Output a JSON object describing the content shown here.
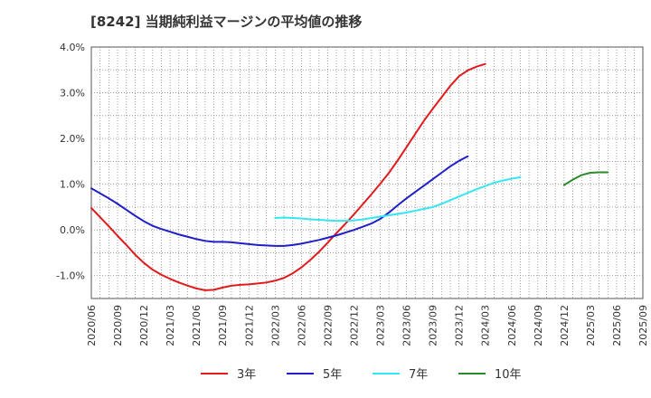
{
  "chart_data": {
    "type": "line",
    "title": "[8242]  当期純利益マージンの平均値の推移",
    "xlabel": "",
    "ylabel": "",
    "ylim": [
      -1.5,
      4.0
    ],
    "yticks": [
      4.0,
      3.0,
      2.0,
      1.0,
      0.0,
      -1.0
    ],
    "ytick_labels": [
      "4.0%",
      "3.0%",
      "2.0%",
      "1.0%",
      "0.0%",
      "-1.0%"
    ],
    "xticks": [
      "2020/06",
      "2020/09",
      "2020/12",
      "2021/03",
      "2021/06",
      "2021/09",
      "2021/12",
      "2022/03",
      "2022/06",
      "2022/09",
      "2022/12",
      "2023/03",
      "2023/06",
      "2023/09",
      "2023/12",
      "2024/03",
      "2024/06",
      "2024/09",
      "2024/12",
      "2025/03",
      "2025/06",
      "2025/09"
    ],
    "grid": true,
    "legend_position": "bottom",
    "series": [
      {
        "name": "3年",
        "color": "#e31a1c",
        "start": "2020/06",
        "values": [
          0.48,
          0.28,
          0.08,
          -0.13,
          -0.33,
          -0.54,
          -0.72,
          -0.87,
          -0.98,
          -1.07,
          -1.15,
          -1.22,
          -1.28,
          -1.32,
          -1.31,
          -1.26,
          -1.22,
          -1.2,
          -1.19,
          -1.17,
          -1.15,
          -1.11,
          -1.05,
          -0.95,
          -0.82,
          -0.66,
          -0.48,
          -0.28,
          -0.07,
          0.13,
          0.34,
          0.56,
          0.78,
          1.01,
          1.25,
          1.52,
          1.81,
          2.1,
          2.39,
          2.65,
          2.9,
          3.15,
          3.36,
          3.49,
          3.57,
          3.63
        ]
      },
      {
        "name": "5年",
        "color": "#1f1fc8",
        "start": "2020/06",
        "values": [
          0.91,
          0.8,
          0.69,
          0.57,
          0.44,
          0.31,
          0.19,
          0.09,
          0.02,
          -0.04,
          -0.1,
          -0.15,
          -0.2,
          -0.24,
          -0.26,
          -0.26,
          -0.27,
          -0.29,
          -0.31,
          -0.33,
          -0.34,
          -0.35,
          -0.35,
          -0.33,
          -0.3,
          -0.26,
          -0.22,
          -0.17,
          -0.12,
          -0.06,
          0.0,
          0.07,
          0.14,
          0.24,
          0.38,
          0.54,
          0.69,
          0.83,
          0.97,
          1.11,
          1.25,
          1.39,
          1.51,
          1.61
        ]
      },
      {
        "name": "7年",
        "color": "#33e6f0",
        "start": "2022/03",
        "values": [
          0.26,
          0.27,
          0.26,
          0.25,
          0.23,
          0.22,
          0.21,
          0.2,
          0.2,
          0.21,
          0.23,
          0.26,
          0.29,
          0.32,
          0.35,
          0.38,
          0.42,
          0.46,
          0.5,
          0.57,
          0.65,
          0.73,
          0.81,
          0.89,
          0.96,
          1.03,
          1.08,
          1.12,
          1.15
        ]
      },
      {
        "name": "10年",
        "color": "#2a8a2a",
        "start": "2024/12",
        "values": [
          0.98,
          1.1,
          1.2,
          1.25,
          1.26,
          1.26
        ]
      }
    ]
  }
}
